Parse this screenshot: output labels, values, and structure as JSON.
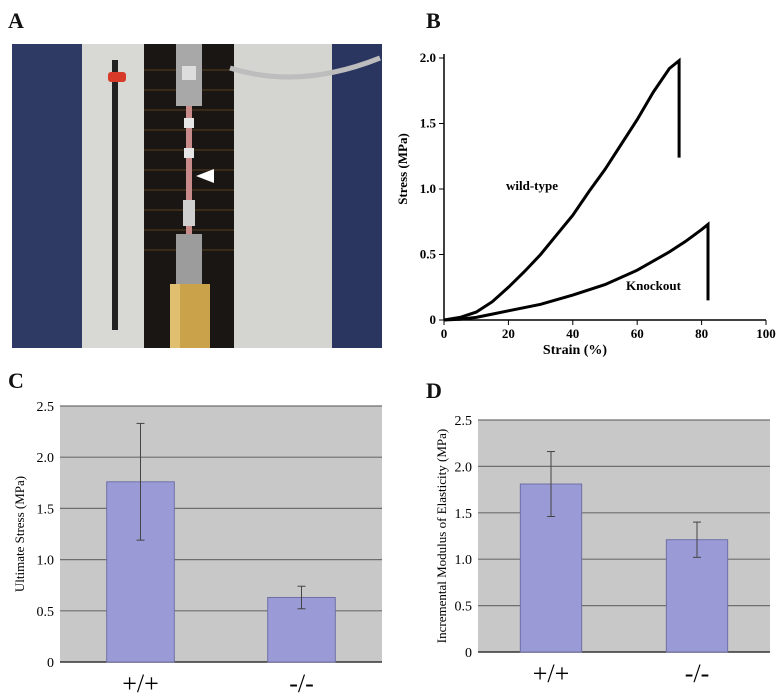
{
  "panels": {
    "a": {
      "letter": "A"
    },
    "b": {
      "letter": "B"
    },
    "c": {
      "letter": "C"
    },
    "d": {
      "letter": "D"
    }
  },
  "colors": {
    "bar_fill": "#9a9ad6",
    "bar_stroke": "#6f6fa8",
    "plot_bg": "#c8c8c8",
    "grid": "#6e6e6e",
    "line": "#000000"
  },
  "chart_data": [
    {
      "panel": "B",
      "type": "line",
      "title": "",
      "xlabel": "Strain (%)",
      "ylabel": "Stress (MPa)",
      "xlim": [
        0,
        100
      ],
      "ylim": [
        0,
        2.0
      ],
      "x_ticks": [
        "0",
        "20",
        "40",
        "60",
        "80",
        "100"
      ],
      "y_ticks": [
        "0",
        "0.5",
        "1.0",
        "1.5",
        "2.0"
      ],
      "grid": false,
      "series": [
        {
          "name": "wild-type",
          "points": [
            [
              0,
              0
            ],
            [
              5,
              0.02
            ],
            [
              10,
              0.06
            ],
            [
              15,
              0.14
            ],
            [
              20,
              0.25
            ],
            [
              25,
              0.37
            ],
            [
              30,
              0.5
            ],
            [
              35,
              0.65
            ],
            [
              40,
              0.8
            ],
            [
              45,
              0.98
            ],
            [
              50,
              1.15
            ],
            [
              55,
              1.34
            ],
            [
              60,
              1.53
            ],
            [
              65,
              1.74
            ],
            [
              70,
              1.92
            ],
            [
              73,
              1.98
            ],
            [
              73,
              1.24
            ]
          ]
        },
        {
          "name": "Knockout",
          "points": [
            [
              0,
              0
            ],
            [
              5,
              0.005
            ],
            [
              10,
              0.02
            ],
            [
              15,
              0.045
            ],
            [
              20,
              0.07
            ],
            [
              30,
              0.12
            ],
            [
              40,
              0.19
            ],
            [
              50,
              0.27
            ],
            [
              60,
              0.38
            ],
            [
              70,
              0.52
            ],
            [
              75,
              0.6
            ],
            [
              80,
              0.69
            ],
            [
              82,
              0.73
            ],
            [
              82,
              0.15
            ]
          ]
        }
      ]
    },
    {
      "panel": "C",
      "type": "bar",
      "title": "",
      "xlabel": "",
      "ylabel": "Ultimate Stress (MPa)",
      "categories": [
        "+/+",
        "-/-"
      ],
      "values": [
        1.76,
        0.63
      ],
      "error": [
        0.57,
        0.11
      ],
      "ylim": [
        0,
        2.5
      ],
      "y_ticks": [
        "0",
        "0.5",
        "1.0",
        "1.5",
        "2.0",
        "2.5"
      ],
      "grid": true
    },
    {
      "panel": "D",
      "type": "bar",
      "title": "",
      "xlabel": "",
      "ylabel": "Incremental Modulus of Elasticity (MPa)",
      "categories": [
        "+/+",
        "-/-"
      ],
      "values": [
        1.81,
        1.21
      ],
      "error": [
        0.35,
        0.19
      ],
      "ylim": [
        0,
        2.5
      ],
      "y_ticks": [
        "0",
        "0.5",
        "1.0",
        "1.5",
        "2.0",
        "2.5"
      ],
      "grid": true
    }
  ]
}
